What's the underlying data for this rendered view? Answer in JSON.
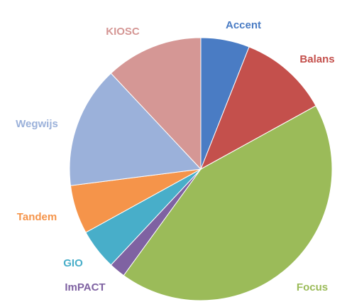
{
  "chart_data": {
    "type": "pie",
    "categories": [
      "Accent",
      "Balans",
      "Focus",
      "ImPACT",
      "GIO",
      "Tandem",
      "Wegwijs",
      "KIOSC"
    ],
    "values": [
      6,
      11,
      43,
      2,
      5,
      6,
      15,
      12
    ],
    "colors": [
      "#4a7cc4",
      "#c4504c",
      "#9bbb59",
      "#7f62a2",
      "#48aec9",
      "#f5944a",
      "#9bb1da",
      "#d59795"
    ]
  }
}
